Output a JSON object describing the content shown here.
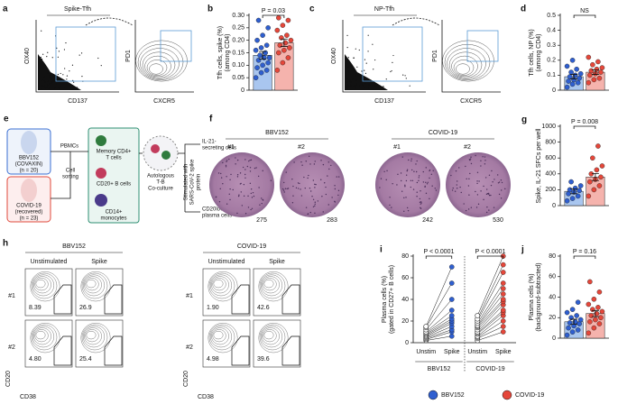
{
  "panels": {
    "a": {
      "label": "a",
      "title": "Spike-Tfh",
      "plot1": {
        "y": "OX40",
        "x": "CD137"
      },
      "plot2": {
        "y": "PD1",
        "x": "CXCR5"
      }
    },
    "c": {
      "label": "c",
      "title": "NP-Tfh",
      "plot1": {
        "y": "OX40",
        "x": "CD137"
      },
      "plot2": {
        "y": "PD1",
        "x": "CXCR5"
      }
    },
    "e": {
      "label": "e",
      "vaccinee": [
        "BBV152",
        "(COVAXIN)",
        "(n = 20)"
      ],
      "recovered": [
        "COVID-19",
        "(recovered)",
        "(n = 23)"
      ],
      "pbmcs": "PBMCs",
      "sorting": [
        "Cell",
        "sorting"
      ],
      "cells": [
        "Memory CD4+",
        "T cells",
        "CD20+ B cells",
        "CD14+",
        "monocytes"
      ],
      "coculture": [
        "Autologous",
        "T-B",
        "Co-culture"
      ],
      "stimulation": [
        "Stimulated with",
        "SARS-CoV-2 spike",
        "protein"
      ],
      "outputs": [
        [
          "IL-21-",
          "secreting cells"
        ],
        [
          "CD20loCD38hi",
          "plasma cells"
        ]
      ]
    },
    "f": {
      "label": "f",
      "groups": [
        "BBV152",
        "COVID-19"
      ],
      "wells": [
        {
          "id": "#1",
          "count": 275
        },
        {
          "id": "#2",
          "count": 283
        },
        {
          "id": "#1",
          "count": 242
        },
        {
          "id": "#2",
          "count": 530
        }
      ]
    },
    "h": {
      "label": "h",
      "groups": [
        {
          "name": "BBV152",
          "conditions": [
            "Unstimulated",
            "Spike"
          ],
          "rows": [
            "#1",
            "#2"
          ],
          "values": [
            [
              "8.39",
              "26.9"
            ],
            [
              "4.80",
              "25.4"
            ]
          ],
          "y": "CD20",
          "x": "CD38"
        },
        {
          "name": "COVID-19",
          "conditions": [
            "Unstimulated",
            "Spike"
          ],
          "rows": [
            "#1",
            "#2"
          ],
          "values": [
            [
              "1.90",
              "42.6"
            ],
            [
              "4.98",
              "39.6"
            ]
          ],
          "y": "CD20",
          "x": "CD38"
        }
      ]
    }
  },
  "chart_data": [
    {
      "type": "bar",
      "panel_label": "b",
      "ylabel": [
        "Tfh cells, spike (%)",
        "(among CD4)"
      ],
      "annotation": "P = 0.03",
      "ylim": [
        0,
        0.3
      ],
      "yticks": [
        0,
        0.05,
        {
          "value": 0.1,
          "label": "0.10"
        },
        0.15,
        {
          "value": 0.2,
          "label": "0.20"
        },
        0.25,
        {
          "value": 0.3,
          "label": "0.30"
        }
      ],
      "series": [
        {
          "name": "BBV152",
          "color": "#2f5fd0",
          "bar_color": "#a9c6ef",
          "values": [
            0.14
          ],
          "errors": [
            0.015
          ],
          "points": [
            0.05,
            0.07,
            0.08,
            0.09,
            0.1,
            0.11,
            0.12,
            0.13,
            0.13,
            0.14,
            0.15,
            0.16,
            0.17,
            0.18,
            0.2,
            0.22,
            0.25,
            0.28
          ]
        },
        {
          "name": "COVID-19",
          "color": "#e5473a",
          "bar_color": "#f5b3ad",
          "values": [
            0.19
          ],
          "errors": [
            0.015
          ],
          "points": [
            0.08,
            0.11,
            0.13,
            0.15,
            0.16,
            0.17,
            0.18,
            0.19,
            0.2,
            0.21,
            0.22,
            0.24,
            0.26,
            0.28,
            0.29
          ]
        }
      ]
    },
    {
      "type": "bar",
      "panel_label": "d",
      "ylabel": [
        "Tfh cells, NP (%)",
        "(among CD4)"
      ],
      "annotation": "NS",
      "ylim": [
        0,
        0.5
      ],
      "yticks": [
        0,
        0.1,
        0.2,
        0.3,
        0.4,
        0.5
      ],
      "series": [
        {
          "color": "#2f5fd0",
          "bar_color": "#a9c6ef",
          "values": [
            0.09
          ],
          "errors": [
            0.015
          ],
          "points": [
            0.02,
            0.04,
            0.05,
            0.06,
            0.07,
            0.08,
            0.09,
            0.1,
            0.11,
            0.12,
            0.14,
            0.16,
            0.2
          ]
        },
        {
          "color": "#e5473a",
          "bar_color": "#f5b3ad",
          "values": [
            0.12
          ],
          "errors": [
            0.015
          ],
          "points": [
            0.05,
            0.07,
            0.08,
            0.1,
            0.11,
            0.12,
            0.13,
            0.14,
            0.15,
            0.17,
            0.19,
            0.22
          ]
        }
      ]
    },
    {
      "type": "bar",
      "panel_label": "g",
      "ylabel": [
        "Spike, IL-21 SFCs per well"
      ],
      "annotation": "P = 0.008",
      "ylim": [
        0,
        1000
      ],
      "yticks": [
        0,
        200,
        400,
        600,
        800,
        1000
      ],
      "series": [
        {
          "color": "#2f5fd0",
          "bar_color": "#a9c6ef",
          "values": [
            180
          ],
          "errors": [
            30
          ],
          "points": [
            60,
            90,
            120,
            150,
            170,
            190,
            200,
            220,
            250,
            300
          ]
        },
        {
          "color": "#e5473a",
          "bar_color": "#f5b3ad",
          "values": [
            360
          ],
          "errors": [
            45
          ],
          "points": [
            120,
            200,
            250,
            300,
            330,
            360,
            400,
            450,
            500,
            600,
            750
          ]
        }
      ]
    },
    {
      "type": "paired",
      "panel_label": "i",
      "ylabel": [
        "Plasma cells (%)",
        "(gated in CD27+ B cells)"
      ],
      "categories": [
        "Unstim",
        "Spike",
        "Unstim",
        "Spike"
      ],
      "groups": [
        "BBV152",
        "COVID-19"
      ],
      "annotations": [
        "P < 0.0001",
        "P < 0.0001"
      ],
      "ylim": [
        0,
        80
      ],
      "yticks": [
        0,
        20,
        40,
        60,
        80
      ],
      "series": [
        {
          "color": "#2f5fd0",
          "unstim": [
            2,
            3,
            4,
            5,
            6,
            7,
            8,
            9,
            10,
            12,
            14,
            15
          ],
          "spike": [
            6,
            10,
            12,
            15,
            18,
            20,
            22,
            25,
            30,
            40,
            55,
            70
          ]
        },
        {
          "color": "#e5473a",
          "unstim": [
            2,
            4,
            5,
            6,
            8,
            9,
            10,
            12,
            14,
            15,
            16,
            18,
            20,
            22,
            25
          ],
          "spike": [
            10,
            15,
            20,
            25,
            28,
            30,
            35,
            38,
            40,
            45,
            50,
            55,
            65,
            72,
            80
          ]
        }
      ]
    },
    {
      "type": "bar",
      "panel_label": "j",
      "ylabel": [
        "Plasma cells (%)",
        "(background-subtracted)"
      ],
      "annotation": "P = 0.16",
      "ylim": [
        0,
        80
      ],
      "yticks": [
        0,
        20,
        40,
        60,
        80
      ],
      "series": [
        {
          "color": "#2f5fd0",
          "bar_color": "#a9c6ef",
          "values": [
            16
          ],
          "errors": [
            2.5
          ],
          "points": [
            3,
            6,
            8,
            10,
            12,
            14,
            15,
            16,
            18,
            20,
            22,
            25,
            28,
            35
          ]
        },
        {
          "color": "#e5473a",
          "bar_color": "#f5b3ad",
          "values": [
            24
          ],
          "errors": [
            3
          ],
          "points": [
            5,
            10,
            14,
            16,
            18,
            20,
            22,
            24,
            26,
            28,
            30,
            33,
            38,
            45,
            55
          ]
        }
      ]
    }
  ]
}
